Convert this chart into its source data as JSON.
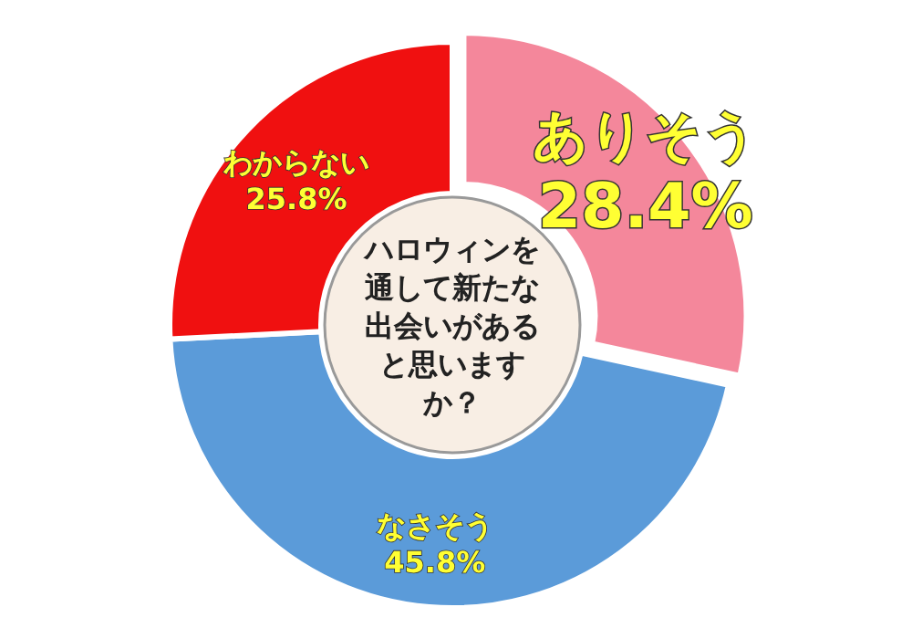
{
  "chart_data": {
    "type": "donut",
    "title": "ハロウィンを通して新たな出会いがあると思いますか？",
    "categories": [
      "ありそう",
      "なさそう",
      "わからない"
    ],
    "values": [
      28.4,
      45.8,
      25.8
    ],
    "value_labels": [
      "28.4%",
      "45.8%",
      "25.8%"
    ],
    "colors": [
      "#f4879b",
      "#5b9bd9",
      "#f01010"
    ]
  }
}
